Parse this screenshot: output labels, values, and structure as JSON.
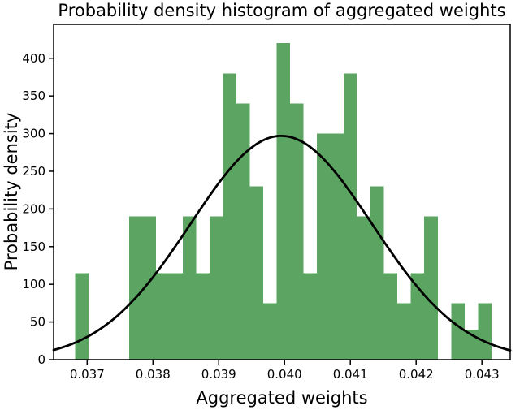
{
  "chart_data": {
    "type": "bar",
    "subtype": "histogram-with-normal-fit",
    "title": "Probability density histogram of aggregated weights",
    "xlabel": "Aggregated weights",
    "ylabel": "Probability density",
    "xlim": [
      0.03649,
      0.04343
    ],
    "ylim": [
      0,
      445
    ],
    "grid": false,
    "legend": "none",
    "bar_color": "#5ba462",
    "axis_color": "#000000",
    "bins": {
      "start": 0.03682,
      "width": 0.000204,
      "densities": [
        115,
        0,
        0,
        0,
        190,
        190,
        115,
        115,
        190,
        115,
        190,
        380,
        340,
        230,
        75,
        420,
        340,
        115,
        300,
        300,
        380,
        190,
        230,
        115,
        75,
        115,
        190,
        0,
        75,
        40,
        75
      ]
    },
    "fit_curve": {
      "type": "normal-pdf",
      "mean": 0.03995,
      "sigma": 0.00138,
      "amplitude": 297,
      "color": "#000000",
      "line_width": 2.8
    },
    "xticks": {
      "values": [
        0.037,
        0.038,
        0.039,
        0.04,
        0.041,
        0.042,
        0.043
      ],
      "labels": [
        "0.037",
        "0.038",
        "0.039",
        "0.040",
        "0.041",
        "0.042",
        "0.043"
      ]
    },
    "yticks": {
      "values": [
        0,
        50,
        100,
        150,
        200,
        250,
        300,
        350,
        400
      ],
      "labels": [
        "0",
        "50",
        "100",
        "150",
        "200",
        "250",
        "300",
        "350",
        "400"
      ]
    }
  }
}
